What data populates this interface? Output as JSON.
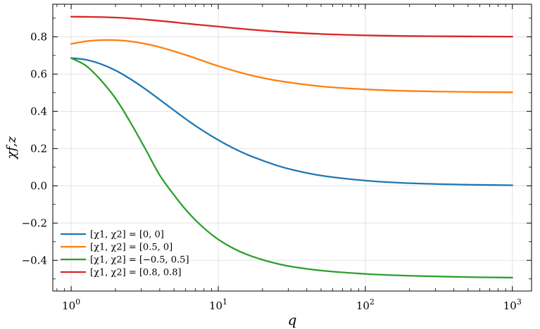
{
  "chart_data": {
    "type": "line",
    "title": "",
    "xlabel": "q",
    "ylabel": "χf,z",
    "xscale": "log",
    "xlim": [
      0.75,
      1350
    ],
    "ylim": [
      -0.565,
      0.975
    ],
    "grid": true,
    "legend_position": "lower-left",
    "xticks": [
      {
        "value": 1,
        "base": "10",
        "exp": "0"
      },
      {
        "value": 10,
        "base": "10",
        "exp": "1"
      },
      {
        "value": 100,
        "base": "10",
        "exp": "2"
      },
      {
        "value": 1000,
        "base": "10",
        "exp": "3"
      }
    ],
    "yticks": [
      {
        "value": -0.4,
        "label": "−0.4"
      },
      {
        "value": -0.2,
        "label": "−0.2"
      },
      {
        "value": 0.0,
        "label": "0.0"
      },
      {
        "value": 0.2,
        "label": "0.2"
      },
      {
        "value": 0.4,
        "label": "0.4"
      },
      {
        "value": 0.6,
        "label": "0.6"
      },
      {
        "value": 0.8,
        "label": "0.8"
      }
    ],
    "series": [
      {
        "name": "[χ1, χ2] = [0, 0]",
        "color": "#1f77b4",
        "x": [
          1,
          1.26,
          1.58,
          2,
          2.51,
          3.16,
          3.98,
          5.01,
          6.31,
          7.94,
          10,
          12.6,
          15.8,
          20,
          25.1,
          31.6,
          50.1,
          100,
          200,
          500,
          1000
        ],
        "y": [
          0.686,
          0.677,
          0.655,
          0.62,
          0.575,
          0.522,
          0.464,
          0.405,
          0.347,
          0.294,
          0.246,
          0.203,
          0.167,
          0.136,
          0.109,
          0.087,
          0.055,
          0.028,
          0.014,
          0.006,
          0.003
        ]
      },
      {
        "name": "[χ1, χ2] = [0.5, 0]",
        "color": "#ff7f0e",
        "x": [
          1,
          1.26,
          1.58,
          2,
          2.51,
          3.16,
          3.98,
          5.01,
          6.31,
          7.94,
          10,
          15.8,
          25.1,
          50.1,
          100,
          200,
          500,
          1000
        ],
        "y": [
          0.762,
          0.776,
          0.782,
          0.782,
          0.776,
          0.763,
          0.745,
          0.722,
          0.697,
          0.67,
          0.643,
          0.598,
          0.565,
          0.534,
          0.518,
          0.509,
          0.504,
          0.502
        ]
      },
      {
        "name": "[χ1, χ2] = [−0.5, 0.5]",
        "color": "#2ca02c",
        "x": [
          1,
          1.26,
          1.58,
          2,
          2.51,
          3.16,
          3.98,
          5.01,
          6.31,
          7.94,
          10,
          12.6,
          15.8,
          20,
          25.1,
          31.6,
          50.1,
          100,
          200,
          500,
          1000
        ],
        "y": [
          0.686,
          0.645,
          0.57,
          0.47,
          0.345,
          0.205,
          0.06,
          -0.05,
          -0.147,
          -0.225,
          -0.288,
          -0.335,
          -0.37,
          -0.397,
          -0.418,
          -0.434,
          -0.455,
          -0.473,
          -0.483,
          -0.49,
          -0.493
        ]
      },
      {
        "name": "[χ1, χ2] = [0.8, 0.8]",
        "color": "#d62728",
        "x": [
          1,
          1.58,
          2.51,
          3.98,
          6.31,
          10,
          15.8,
          25.1,
          50.1,
          100,
          200,
          500,
          1000
        ],
        "y": [
          0.908,
          0.906,
          0.899,
          0.886,
          0.87,
          0.855,
          0.84,
          0.828,
          0.815,
          0.808,
          0.804,
          0.802,
          0.801
        ]
      }
    ]
  }
}
